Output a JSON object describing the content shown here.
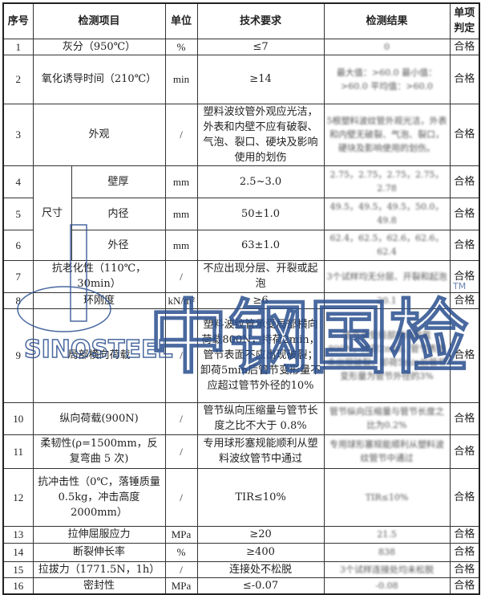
{
  "headers": [
    "序号",
    "检测项目",
    "单位",
    "技术要求",
    "检测结果",
    "单项判定"
  ],
  "size_group_label": "尺寸",
  "rows": [
    {
      "no": "1",
      "item": "灰分（950℃）",
      "unit": "%",
      "req": "≤7",
      "result": "0",
      "verdict": "合格"
    },
    {
      "no": "2",
      "item": "氧化诱导时间（210℃）",
      "unit": "min",
      "req": "≥14",
      "result": "最大值：>60.0 最小值：>60.0 平均值：>60.0",
      "verdict": "合格"
    },
    {
      "no": "3",
      "item": "外观",
      "unit": "/",
      "req": "塑料波纹管外观应光洁，外表和内壁不应有破裂、气泡、裂口、硬块及影响使用的划伤",
      "result": "5根塑料波纹管外观光洁，外表和内壁无破裂、气泡、裂口，硬块及影响使用的划伤。",
      "verdict": "合格"
    },
    {
      "no": "4",
      "item": "壁厚",
      "unit": "mm",
      "req": "2.5~3.0",
      "result": "2.75，2.75，2.75，2.75，2.78",
      "verdict": "合格"
    },
    {
      "no": "5",
      "item": "内径",
      "unit": "mm",
      "req": "50±1.0",
      "result": "49.5，49.5，49.5，50.0，49.8",
      "verdict": "合格"
    },
    {
      "no": "6",
      "item": "外径",
      "unit": "mm",
      "req": "63±1.0",
      "result": "62.4，62.5，62.6，62.6，62.4",
      "verdict": "合格"
    },
    {
      "no": "7",
      "item": "抗老化性（110℃，30min）",
      "unit": "/",
      "req": "不应出现分层、开裂或起泡",
      "result": "3个试样均无分层、开裂和起泡",
      "verdict": "合格"
    },
    {
      "no": "8",
      "item": "环刚度",
      "unit": "kN/m²",
      "req": "≥6",
      "result": "20.1",
      "verdict": "合格"
    },
    {
      "no": "9",
      "item": "局部横向荷载",
      "unit": "/",
      "req": "塑料波纹管承受局部横向荷载800N，持荷2min，管节表面不应出现破裂；卸荷5min后管节变形量不应超过管节外径的10%",
      "result": "管节承受局部横向荷载800N，持荷2min，管节表面未出现破裂，卸荷5min后管节变形量为管节外径的3%",
      "verdict": "合格"
    },
    {
      "no": "10",
      "item": "纵向荷载(900N)",
      "unit": "/",
      "req": "管节纵向压缩量与管节长度之比不大于 0.8%",
      "result": "管节纵向压缩量与管节长度之比为0.2%",
      "verdict": "合格"
    },
    {
      "no": "11",
      "item": "柔韧性(ρ=1500mm，反复弯曲 5 次)",
      "unit": "/",
      "req": "专用球形塞规能顺利从塑料波纹管节中通过",
      "result": "专用球形塞规能顺利从塑料波纹管节中通过",
      "verdict": "合格"
    },
    {
      "no": "12",
      "item": "抗冲击性（0℃，落锤质量 0.5kg，冲击高度 2000mm）",
      "unit": "/",
      "req": "TIR≤10%",
      "result": "TIR≤10%",
      "verdict": "合格"
    },
    {
      "no": "13",
      "item": "拉伸屈服应力",
      "unit": "MPa",
      "req": "≥20",
      "result": "21.5",
      "verdict": "合格"
    },
    {
      "no": "14",
      "item": "断裂伸长率",
      "unit": "%",
      "req": "≥400",
      "result": "838",
      "verdict": "合格"
    },
    {
      "no": "15",
      "item": "拉拔力（1771.5N，1h）",
      "unit": "/",
      "req": "连接处不松脱",
      "result": "3个试样连接处均未松脱",
      "verdict": "合格"
    },
    {
      "no": "16",
      "item": "密封性",
      "unit": "MPa",
      "req": "≤-0.07",
      "result": "-0.08",
      "verdict": "合格"
    }
  ],
  "watermark": {
    "brand": "SINOSTEEL",
    "cn": "中钢国检",
    "tm": "TM",
    "color": "#2a4f8f"
  }
}
